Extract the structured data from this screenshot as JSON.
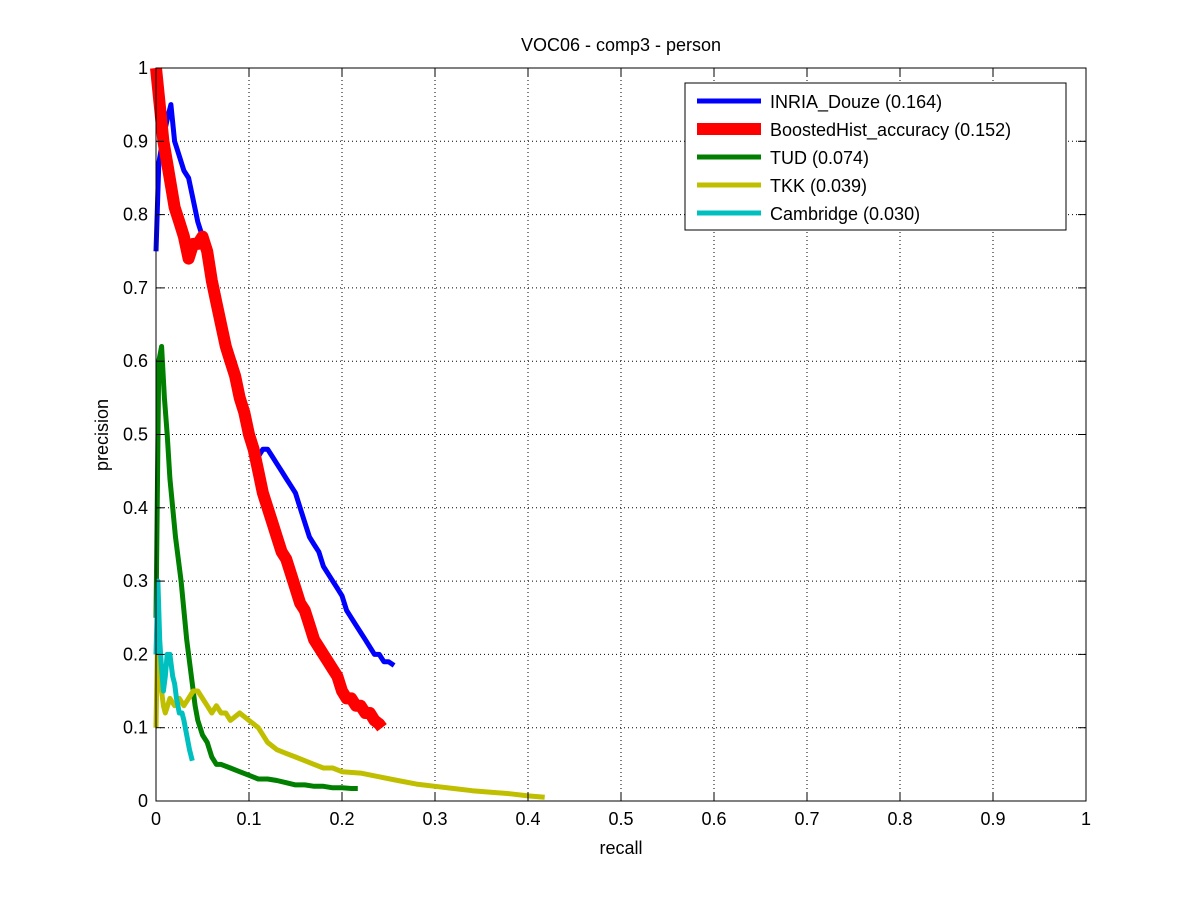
{
  "chart_data": {
    "type": "line",
    "title": "VOC06 - comp3 - person",
    "xlabel": "recall",
    "ylabel": "precision",
    "xlim": [
      0,
      1
    ],
    "ylim": [
      0,
      1
    ],
    "xticks": [
      "0",
      "0.1",
      "0.2",
      "0.3",
      "0.4",
      "0.5",
      "0.6",
      "0.7",
      "0.8",
      "0.9",
      "1"
    ],
    "yticks": [
      "0",
      "0.1",
      "0.2",
      "0.3",
      "0.4",
      "0.5",
      "0.6",
      "0.7",
      "0.8",
      "0.9",
      "1"
    ],
    "grid": true,
    "legend_position": "top-right",
    "series": [
      {
        "name": "INRIA_Douze (0.164)",
        "color": "#0000ff",
        "x": [
          0.0,
          0.003,
          0.007,
          0.012,
          0.016,
          0.02,
          0.025,
          0.03,
          0.035,
          0.04,
          0.045,
          0.05,
          0.055,
          0.06,
          0.065,
          0.07,
          0.075,
          0.08,
          0.085,
          0.09,
          0.095,
          0.1,
          0.105,
          0.11,
          0.115,
          0.12,
          0.125,
          0.13,
          0.135,
          0.14,
          0.145,
          0.15,
          0.155,
          0.16,
          0.165,
          0.17,
          0.175,
          0.18,
          0.185,
          0.19,
          0.195,
          0.2,
          0.205,
          0.21,
          0.215,
          0.22,
          0.225,
          0.23,
          0.235,
          0.24,
          0.245,
          0.25,
          0.256
        ],
        "y": [
          0.75,
          0.87,
          0.9,
          0.93,
          0.95,
          0.9,
          0.88,
          0.86,
          0.85,
          0.82,
          0.79,
          0.77,
          0.75,
          0.72,
          0.68,
          0.65,
          0.62,
          0.6,
          0.58,
          0.55,
          0.53,
          0.51,
          0.49,
          0.47,
          0.48,
          0.48,
          0.47,
          0.46,
          0.45,
          0.44,
          0.43,
          0.42,
          0.4,
          0.38,
          0.36,
          0.35,
          0.34,
          0.32,
          0.31,
          0.3,
          0.29,
          0.28,
          0.26,
          0.25,
          0.24,
          0.23,
          0.22,
          0.21,
          0.2,
          0.2,
          0.19,
          0.19,
          0.185
        ]
      },
      {
        "name": "BoostedHist_accuracy (0.152)",
        "color": "#ff0000",
        "x": [
          0.0,
          0.004,
          0.008,
          0.012,
          0.016,
          0.02,
          0.025,
          0.03,
          0.035,
          0.04,
          0.045,
          0.05,
          0.055,
          0.06,
          0.065,
          0.07,
          0.075,
          0.08,
          0.085,
          0.09,
          0.095,
          0.1,
          0.105,
          0.11,
          0.115,
          0.12,
          0.125,
          0.13,
          0.135,
          0.14,
          0.145,
          0.15,
          0.155,
          0.16,
          0.165,
          0.17,
          0.175,
          0.18,
          0.185,
          0.19,
          0.195,
          0.2,
          0.205,
          0.21,
          0.215,
          0.22,
          0.225,
          0.23,
          0.235,
          0.24,
          0.243
        ],
        "y": [
          1.0,
          0.95,
          0.9,
          0.87,
          0.84,
          0.81,
          0.79,
          0.77,
          0.74,
          0.76,
          0.76,
          0.77,
          0.75,
          0.71,
          0.68,
          0.65,
          0.62,
          0.6,
          0.58,
          0.55,
          0.53,
          0.5,
          0.48,
          0.45,
          0.42,
          0.4,
          0.38,
          0.36,
          0.34,
          0.33,
          0.31,
          0.29,
          0.27,
          0.26,
          0.24,
          0.22,
          0.21,
          0.2,
          0.19,
          0.18,
          0.17,
          0.15,
          0.14,
          0.14,
          0.13,
          0.13,
          0.12,
          0.12,
          0.11,
          0.105,
          0.1
        ]
      },
      {
        "name": "TUD (0.074)",
        "color": "#007f00",
        "x": [
          0.0,
          0.003,
          0.006,
          0.009,
          0.012,
          0.015,
          0.018,
          0.021,
          0.024,
          0.027,
          0.03,
          0.033,
          0.036,
          0.039,
          0.042,
          0.045,
          0.05,
          0.055,
          0.06,
          0.065,
          0.07,
          0.08,
          0.09,
          0.1,
          0.11,
          0.12,
          0.13,
          0.14,
          0.15,
          0.16,
          0.17,
          0.18,
          0.19,
          0.2,
          0.21,
          0.217
        ],
        "y": [
          0.25,
          0.6,
          0.62,
          0.55,
          0.5,
          0.44,
          0.4,
          0.36,
          0.33,
          0.3,
          0.26,
          0.22,
          0.19,
          0.16,
          0.13,
          0.11,
          0.09,
          0.08,
          0.06,
          0.05,
          0.05,
          0.045,
          0.04,
          0.035,
          0.03,
          0.03,
          0.028,
          0.025,
          0.022,
          0.022,
          0.02,
          0.02,
          0.018,
          0.018,
          0.017,
          0.017
        ]
      },
      {
        "name": "TKK (0.039)",
        "color": "#bfbf00",
        "x": [
          0.0,
          0.002,
          0.004,
          0.006,
          0.008,
          0.01,
          0.015,
          0.02,
          0.025,
          0.03,
          0.035,
          0.04,
          0.045,
          0.05,
          0.055,
          0.06,
          0.065,
          0.07,
          0.075,
          0.08,
          0.09,
          0.1,
          0.11,
          0.12,
          0.13,
          0.14,
          0.15,
          0.16,
          0.17,
          0.18,
          0.19,
          0.2,
          0.22,
          0.24,
          0.26,
          0.28,
          0.3,
          0.32,
          0.34,
          0.36,
          0.38,
          0.4,
          0.418
        ],
        "y": [
          0.1,
          0.25,
          0.2,
          0.15,
          0.13,
          0.12,
          0.14,
          0.13,
          0.14,
          0.13,
          0.14,
          0.15,
          0.15,
          0.14,
          0.13,
          0.12,
          0.13,
          0.12,
          0.12,
          0.11,
          0.12,
          0.11,
          0.1,
          0.08,
          0.07,
          0.065,
          0.06,
          0.055,
          0.05,
          0.045,
          0.045,
          0.04,
          0.038,
          0.033,
          0.028,
          0.023,
          0.02,
          0.017,
          0.014,
          0.012,
          0.01,
          0.007,
          0.005
        ]
      },
      {
        "name": "Cambridge (0.030)",
        "color": "#00bfbf",
        "x": [
          0.0,
          0.002,
          0.004,
          0.006,
          0.008,
          0.01,
          0.012,
          0.015,
          0.018,
          0.02,
          0.022,
          0.025,
          0.028,
          0.03,
          0.033,
          0.036,
          0.039
        ],
        "y": [
          0.2,
          0.3,
          0.22,
          0.18,
          0.15,
          0.17,
          0.2,
          0.2,
          0.17,
          0.16,
          0.14,
          0.12,
          0.12,
          0.11,
          0.09,
          0.07,
          0.055
        ]
      }
    ]
  }
}
